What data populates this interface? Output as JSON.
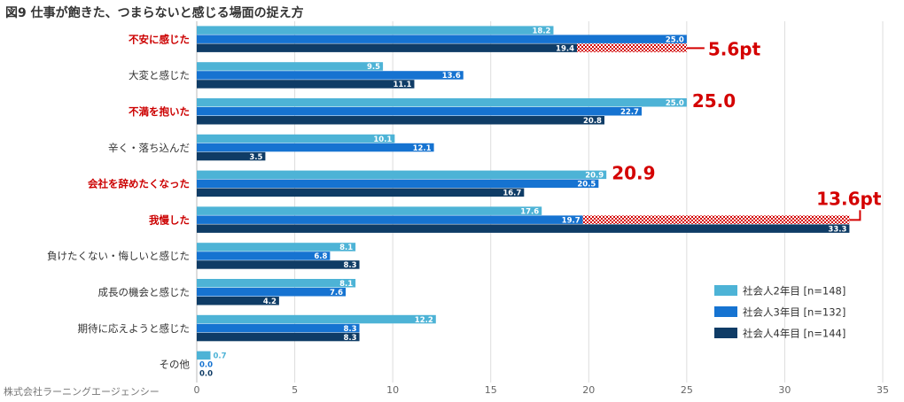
{
  "chart_data": {
    "type": "bar",
    "orientation": "horizontal",
    "title": "図9 仕事が飽きた、つまらないと感じる場面の捉え方",
    "source": "株式会社ラーニングエージェンシー",
    "xlim": [
      0,
      35
    ],
    "xticks": [
      0,
      5,
      10,
      15,
      20,
      25,
      30,
      35
    ],
    "grid": true,
    "legend_position": "bottom-right",
    "categories": [
      {
        "label": "不安に感じた",
        "highlight": true
      },
      {
        "label": "大変と感じた",
        "highlight": false
      },
      {
        "label": "不満を抱いた",
        "highlight": true
      },
      {
        "label": "辛く・落ち込んだ",
        "highlight": false
      },
      {
        "label": "会社を辞めたくなった",
        "highlight": true
      },
      {
        "label": "我慢した",
        "highlight": true
      },
      {
        "label": "負けたくない・悔しいと感じた",
        "highlight": false
      },
      {
        "label": "成長の機会と感じた",
        "highlight": false
      },
      {
        "label": "期待に応えようと感じた",
        "highlight": false
      },
      {
        "label": "その他",
        "highlight": false
      }
    ],
    "series": [
      {
        "name": "社会人2年目 [n=148]",
        "color": "#4db3d6",
        "values": [
          18.2,
          9.5,
          25.0,
          10.1,
          20.9,
          17.6,
          8.1,
          8.1,
          12.2,
          0.7
        ]
      },
      {
        "name": "社会人3年目 [n=132]",
        "color": "#1673d1",
        "values": [
          25.0,
          13.6,
          22.7,
          12.1,
          20.5,
          19.7,
          6.8,
          7.6,
          8.3,
          0.0
        ]
      },
      {
        "name": "社会人4年目 [n=144]",
        "color": "#0f3c66",
        "values": [
          19.4,
          11.1,
          20.8,
          3.5,
          16.7,
          33.3,
          8.3,
          4.2,
          8.3,
          0.0
        ]
      }
    ],
    "annotations": [
      {
        "category": 0,
        "type": "gap",
        "from_series": 2,
        "to_value": 25.0,
        "label": "5.6pt"
      },
      {
        "category": 2,
        "type": "max",
        "label": "25.0"
      },
      {
        "category": 4,
        "type": "max",
        "label": "20.9"
      },
      {
        "category": 5,
        "type": "gap",
        "from_series": 1,
        "to_value": 33.3,
        "label": "13.6pt"
      }
    ],
    "colors": {
      "highlight_label": "#cc0000",
      "annotation": "#d40000",
      "grid": "#dddddd",
      "axis_text": "#666666",
      "label_text": "#333333"
    }
  }
}
